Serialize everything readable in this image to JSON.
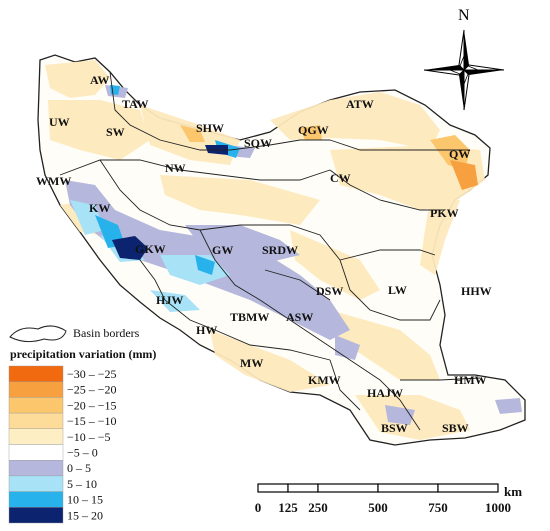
{
  "map": {
    "north_label": "N",
    "basins": [
      {
        "name": "AW"
      },
      {
        "name": "TAW"
      },
      {
        "name": "UW"
      },
      {
        "name": "SW"
      },
      {
        "name": "SHW"
      },
      {
        "name": "ATW"
      },
      {
        "name": "QGW"
      },
      {
        "name": "SQW"
      },
      {
        "name": "QW"
      },
      {
        "name": "NW"
      },
      {
        "name": "CW"
      },
      {
        "name": "WMW"
      },
      {
        "name": "KW"
      },
      {
        "name": "PKW"
      },
      {
        "name": "GKW"
      },
      {
        "name": "GW"
      },
      {
        "name": "SRDW"
      },
      {
        "name": "DSW"
      },
      {
        "name": "LW"
      },
      {
        "name": "HHW"
      },
      {
        "name": "HJW"
      },
      {
        "name": "TBMW"
      },
      {
        "name": "ASW"
      },
      {
        "name": "HW"
      },
      {
        "name": "MW"
      },
      {
        "name": "KMW"
      },
      {
        "name": "HAJW"
      },
      {
        "name": "HMW"
      },
      {
        "name": "BSW"
      },
      {
        "name": "SBW"
      }
    ]
  },
  "legend": {
    "basin_borders_label": "Basin borders",
    "title": "precipitation variation (mm)",
    "items": [
      {
        "label": "−30 – −25",
        "color": "#f26a10"
      },
      {
        "label": "−25 – −20",
        "color": "#f7a040"
      },
      {
        "label": "−20 – −15",
        "color": "#fbc66c"
      },
      {
        "label": "−15 – −10",
        "color": "#fddc9a"
      },
      {
        "label": "−10 – −5",
        "color": "#fdeec4"
      },
      {
        "label": "−5 – 0",
        "color": "#ffffff"
      },
      {
        "label": "0 – 5",
        "color": "#b5b7dc"
      },
      {
        "label": "5 – 10",
        "color": "#a7e2f7"
      },
      {
        "label": "10 – 15",
        "color": "#27b2ec"
      },
      {
        "label": "15 – 20",
        "color": "#0c2370"
      }
    ]
  },
  "scale": {
    "ticks": [
      "0",
      "125",
      "250",
      "500",
      "750",
      "1000"
    ],
    "unit": "km"
  }
}
